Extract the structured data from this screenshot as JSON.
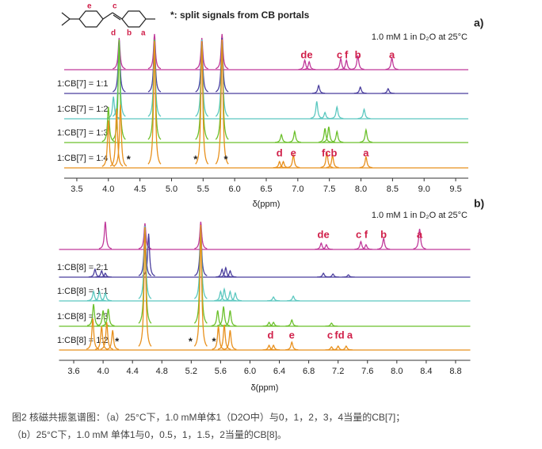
{
  "header": {
    "note": "*:  split signals from CB portals",
    "structure_labels": [
      "e",
      "c",
      "d",
      "b",
      "a"
    ]
  },
  "chart_data": [
    {
      "type": "spectrum",
      "title": "a)",
      "subtitle": "1.0 mM 1 in D₂O at 25°C",
      "x_label": "δ(ppm)",
      "xlim": [
        3.3,
        9.7
      ],
      "xticks": [
        3.5,
        {
          "value": 4,
          "label": "4.0"
        },
        4.5,
        {
          "value": 5,
          "label": "5.0"
        },
        5.5,
        {
          "value": 6,
          "label": "6.0"
        },
        6.5,
        {
          "value": 7,
          "label": "7.0"
        },
        7.5,
        {
          "value": 8,
          "label": "8.0"
        },
        8.5,
        {
          "value": 9,
          "label": "9.0"
        },
        9.5
      ],
      "series": [
        {
          "color": "#c0399a",
          "peaks": [
            4.17,
            4.73,
            5.48,
            5.8,
            7.11,
            7.18,
            7.68,
            7.77,
            7.95,
            8.49
          ],
          "values": [
            40,
            45,
            40,
            45,
            12,
            10,
            14,
            12,
            18,
            15
          ],
          "peak_labels": [
            {
              "text": "de",
              "ppm": 7.14
            },
            {
              "text": "c",
              "ppm": 7.66
            },
            {
              "text": "f",
              "ppm": 7.77
            },
            {
              "text": "b",
              "ppm": 7.95
            },
            {
              "text": "a",
              "ppm": 8.49
            }
          ]
        },
        {
          "name": "1:CB[7] = 1:1",
          "color": "#4b3f9e",
          "peaks": [
            4.17,
            4.73,
            5.48,
            5.8,
            7.33,
            7.99,
            8.43
          ],
          "values": [
            68,
            68,
            68,
            70,
            10,
            8,
            6
          ]
        },
        {
          "name": "1:CB[7] = 1:2",
          "color": "#5cc8c0",
          "peaks": [
            4.08,
            4.17,
            4.73,
            5.48,
            5.8,
            7.3,
            7.43,
            7.62,
            8.05
          ],
          "values": [
            28,
            100,
            100,
            100,
            100,
            22,
            8,
            15,
            12
          ]
        },
        {
          "name": "1:CB[7] = 1:3",
          "color": "#6cc02c",
          "peaks": [
            4.0,
            4.17,
            4.73,
            5.48,
            5.8,
            6.74,
            6.95,
            7.43,
            7.49,
            7.62,
            8.08
          ],
          "values": [
            45,
            130,
            130,
            128,
            130,
            10,
            14,
            18,
            20,
            14,
            16
          ]
        },
        {
          "name": "1:CB[7] = 1:4",
          "color": "#e8901c",
          "peaks": [
            4.0,
            4.13,
            4.19,
            4.73,
            5.48,
            5.8,
            6.71,
            6.77,
            6.93,
            7.46,
            7.55,
            8.08
          ],
          "values": [
            60,
            75,
            80,
            160,
            160,
            162,
            8,
            8,
            16,
            20,
            16,
            14
          ],
          "peak_labels": [
            {
              "text": "d",
              "ppm": 6.71
            },
            {
              "text": "e",
              "ppm": 6.93
            },
            {
              "text": "fcb",
              "ppm": 7.5
            },
            {
              "text": "a",
              "ppm": 8.08
            }
          ]
        }
      ],
      "annotations": [
        {
          "text": "*",
          "ppm": 4.32
        },
        {
          "text": "*",
          "ppm": 5.38
        },
        {
          "text": "*",
          "ppm": 5.86
        }
      ]
    },
    {
      "type": "spectrum",
      "title": "b)",
      "subtitle": "1.0 mM 1 in D₂O at 25°C",
      "x_label": "δ(ppm)",
      "xlim": [
        3.4,
        9.0
      ],
      "xticks": [
        3.6,
        {
          "value": 4,
          "label": "4.0"
        },
        4.4,
        4.8,
        5.2,
        5.6,
        {
          "value": 6,
          "label": "6.0"
        },
        6.4,
        6.8,
        7.2,
        7.6,
        {
          "value": 8,
          "label": "8.0"
        },
        8.4,
        8.8
      ],
      "series": [
        {
          "color": "#c0399a",
          "peaks": [
            4.03,
            4.57,
            5.33,
            6.97,
            7.04,
            7.51,
            7.58,
            7.82,
            8.31
          ],
          "values": [
            35,
            33,
            35,
            8,
            6,
            10,
            6,
            14,
            26
          ],
          "peak_labels": [
            {
              "text": "de",
              "ppm": 7.0
            },
            {
              "text": "c",
              "ppm": 7.48
            },
            {
              "text": "f",
              "ppm": 7.58
            },
            {
              "text": "b",
              "ppm": 7.82
            },
            {
              "text": "a",
              "ppm": 8.31
            }
          ]
        },
        {
          "name": "1:CB[8] = 2:1",
          "color": "#4b3f9e",
          "peaks": [
            3.89,
            3.98,
            4.03,
            4.57,
            4.62,
            5.33,
            5.62,
            5.67,
            5.73,
            7.0,
            7.13,
            7.34
          ],
          "values": [
            10,
            8,
            5,
            60,
            55,
            60,
            10,
            12,
            8,
            5,
            4,
            3
          ]
        },
        {
          "name": "1:CB[8] = 1:1",
          "color": "#5cc8c0",
          "peaks": [
            3.87,
            3.95,
            4.03,
            4.57,
            5.33,
            5.6,
            5.65,
            5.73,
            5.8,
            6.32,
            6.59
          ],
          "values": [
            12,
            12,
            10,
            95,
            95,
            12,
            15,
            12,
            10,
            5,
            6
          ]
        },
        {
          "name": "1:CB[8] = 2:3",
          "color": "#6cc02c",
          "peaks": [
            3.87,
            4.0,
            4.07,
            4.57,
            5.33,
            5.56,
            5.64,
            5.73,
            6.26,
            6.32,
            6.57,
            7.11
          ],
          "values": [
            28,
            20,
            22,
            125,
            125,
            20,
            25,
            20,
            5,
            5,
            8,
            4
          ]
        },
        {
          "name": "1:CB[8] = 1:2",
          "color": "#e8901c",
          "peaks": [
            3.86,
            3.98,
            4.05,
            4.13,
            4.57,
            5.33,
            5.57,
            5.65,
            5.73,
            6.26,
            6.32,
            6.57,
            7.11,
            7.2,
            7.31
          ],
          "values": [
            40,
            30,
            35,
            25,
            155,
            158,
            30,
            32,
            25,
            6,
            6,
            10,
            4,
            5,
            5
          ],
          "peak_labels": [
            {
              "text": "d",
              "ppm": 6.28
            },
            {
              "text": "e",
              "ppm": 6.57
            },
            {
              "text": "c",
              "ppm": 7.09
            },
            {
              "text": "fd",
              "ppm": 7.22
            },
            {
              "text": "a",
              "ppm": 7.36
            }
          ]
        }
      ],
      "annotations": [
        {
          "text": "*",
          "ppm": 4.19
        },
        {
          "text": "*",
          "ppm": 5.19
        },
        {
          "text": "*",
          "ppm": 5.51
        }
      ]
    }
  ],
  "caption": [
    "图2 核磁共振氢谱图：（a）25°C下，1.0 mM单体1（D2O中）与0，1，2，3，4当量的CB[7]；",
    "（b）25°C下，1.0 mM 单体1与0，0.5，1，1.5，2当量的CB[8]。"
  ]
}
